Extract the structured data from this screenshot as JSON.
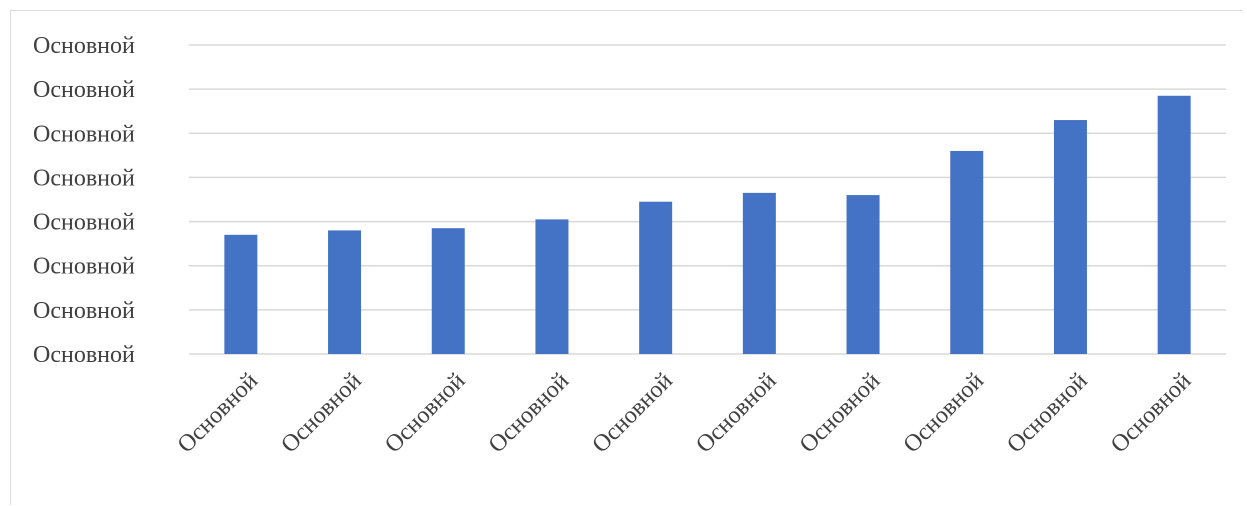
{
  "chart_data": {
    "type": "bar",
    "title": "",
    "xlabel": "",
    "ylabel": "",
    "categories": [
      "Основной",
      "Основной",
      "Основной",
      "Основной",
      "Основной",
      "Основной",
      "Основной",
      "Основной",
      "Основной",
      "Основной"
    ],
    "values": [
      2.7,
      2.8,
      2.85,
      3.05,
      3.45,
      3.65,
      3.6,
      4.6,
      5.3,
      5.85
    ],
    "ylim": [
      0,
      7
    ],
    "y_tick_labels": [
      "Основной",
      "Основной",
      "Основной",
      "Основной",
      "Основной",
      "Основной",
      "Основной",
      "Основной"
    ],
    "grid": true,
    "bar_color": "#4472c4",
    "grid_color": "#d9d9d9",
    "text_color": "#404040"
  }
}
